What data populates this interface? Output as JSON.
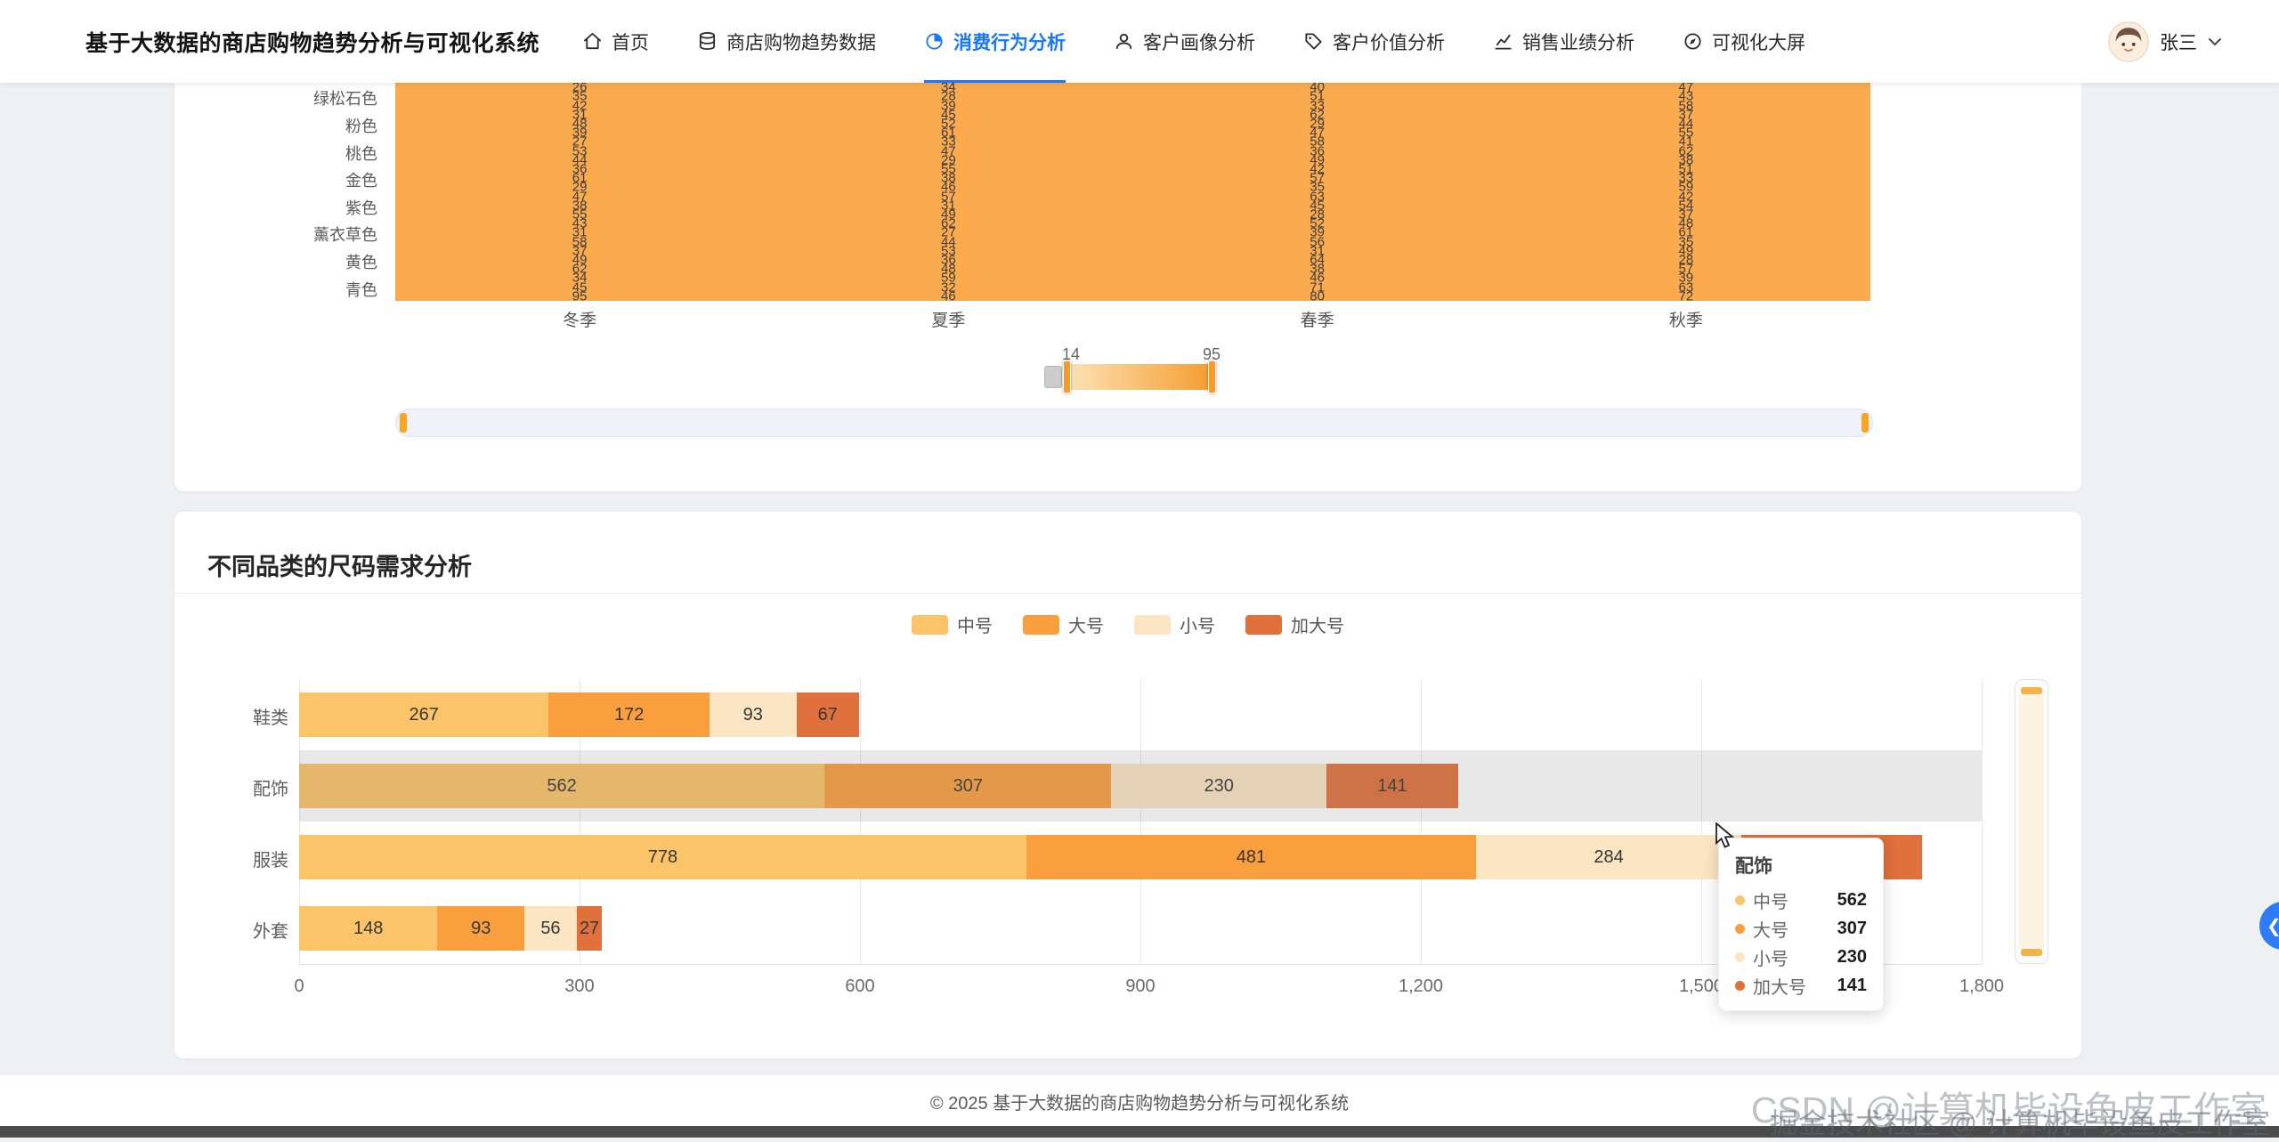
{
  "nav": {
    "title": "基于大数据的商店购物趋势分析与可视化系统",
    "items": [
      {
        "label": "首页",
        "icon": "home-icon",
        "active": false
      },
      {
        "label": "商店购物趋势数据",
        "icon": "database-icon",
        "active": false
      },
      {
        "label": "消费行为分析",
        "icon": "pie-chart-icon",
        "active": true
      },
      {
        "label": "客户画像分析",
        "icon": "user-icon",
        "active": false
      },
      {
        "label": "客户价值分析",
        "icon": "tag-icon",
        "active": false
      },
      {
        "label": "销售业绩分析",
        "icon": "line-chart-icon",
        "active": false
      },
      {
        "label": "可视化大屏",
        "icon": "dashboard-icon",
        "active": false
      }
    ],
    "user": {
      "name": "张三",
      "icon": "chevron-down-icon"
    }
  },
  "colors": {
    "accent": "#1677ff",
    "heatmap_cell": "#fbaa4e",
    "hover_band": "rgba(128,128,128,0.18)"
  },
  "chart_data": [
    {
      "type": "heatmap",
      "x_categories": [
        "冬季",
        "夏季",
        "春季",
        "秋季"
      ],
      "y_labels": [
        "绿松石色",
        "粉色",
        "桃色",
        "金色",
        "紫色",
        "薰衣草色",
        "黄色",
        "青色"
      ],
      "values": [
        [
          26,
          34,
          40,
          47
        ],
        [
          35,
          28,
          51,
          43
        ],
        [
          42,
          39,
          33,
          58
        ],
        [
          31,
          45,
          62,
          37
        ],
        [
          48,
          52,
          29,
          44
        ],
        [
          39,
          61,
          47,
          55
        ],
        [
          27,
          33,
          58,
          41
        ],
        [
          53,
          47,
          36,
          62
        ],
        [
          44,
          29,
          49,
          38
        ],
        [
          36,
          55,
          42,
          51
        ],
        [
          61,
          38,
          57,
          33
        ],
        [
          29,
          46,
          35,
          59
        ],
        [
          47,
          57,
          63,
          42
        ],
        [
          38,
          31,
          45,
          54
        ],
        [
          55,
          49,
          28,
          37
        ],
        [
          43,
          62,
          52,
          48
        ],
        [
          31,
          27,
          39,
          61
        ],
        [
          58,
          44,
          56,
          35
        ],
        [
          37,
          53,
          31,
          49
        ],
        [
          49,
          36,
          64,
          28
        ],
        [
          62,
          48,
          38,
          57
        ],
        [
          34,
          59,
          46,
          39
        ],
        [
          45,
          32,
          71,
          63
        ],
        [
          95,
          46,
          80,
          72
        ]
      ],
      "visual_map": {
        "min": 14,
        "max": 95
      },
      "data_zoom": {
        "orientation": "horizontal"
      }
    },
    {
      "type": "bar",
      "orientation": "horizontal",
      "stacked": true,
      "title": "不同品类的尺码需求分析",
      "categories": [
        "鞋类",
        "配饰",
        "服装",
        "外套"
      ],
      "series": [
        {
          "name": "中号",
          "color": "#fbc469",
          "values": [
            267,
            562,
            778,
            148
          ]
        },
        {
          "name": "大号",
          "color": "#f99f3e",
          "values": [
            172,
            307,
            481,
            93
          ]
        },
        {
          "name": "小号",
          "color": "#fce5c3",
          "values": [
            93,
            230,
            284,
            56
          ]
        },
        {
          "name": "加大号",
          "color": "#e0703c",
          "values": [
            67,
            141,
            193,
            27
          ]
        }
      ],
      "x_ticks": [
        "0",
        "300",
        "600",
        "900",
        "1,200",
        "1,500",
        "1,800"
      ],
      "x_max": 1800,
      "grid": true,
      "legend_position": "top-center",
      "highlighted_category": "配饰",
      "tooltip": {
        "title": "配饰",
        "rows": [
          {
            "name": "中号",
            "value": "562"
          },
          {
            "name": "大号",
            "value": "307"
          },
          {
            "name": "小号",
            "value": "230"
          },
          {
            "name": "加大号",
            "value": "141"
          }
        ]
      }
    }
  ],
  "footer": {
    "copyright": "© 2025 基于大数据的商店购物趋势分析与可视化系统"
  },
  "watermarks": {
    "csdn": "CSDN @计算机毕设鱼皮工作室",
    "juejin": "掘金技术社区 @ 计算机毕设鱼皮工作室"
  },
  "float_button": {
    "icon": "chevron-left-icon"
  }
}
